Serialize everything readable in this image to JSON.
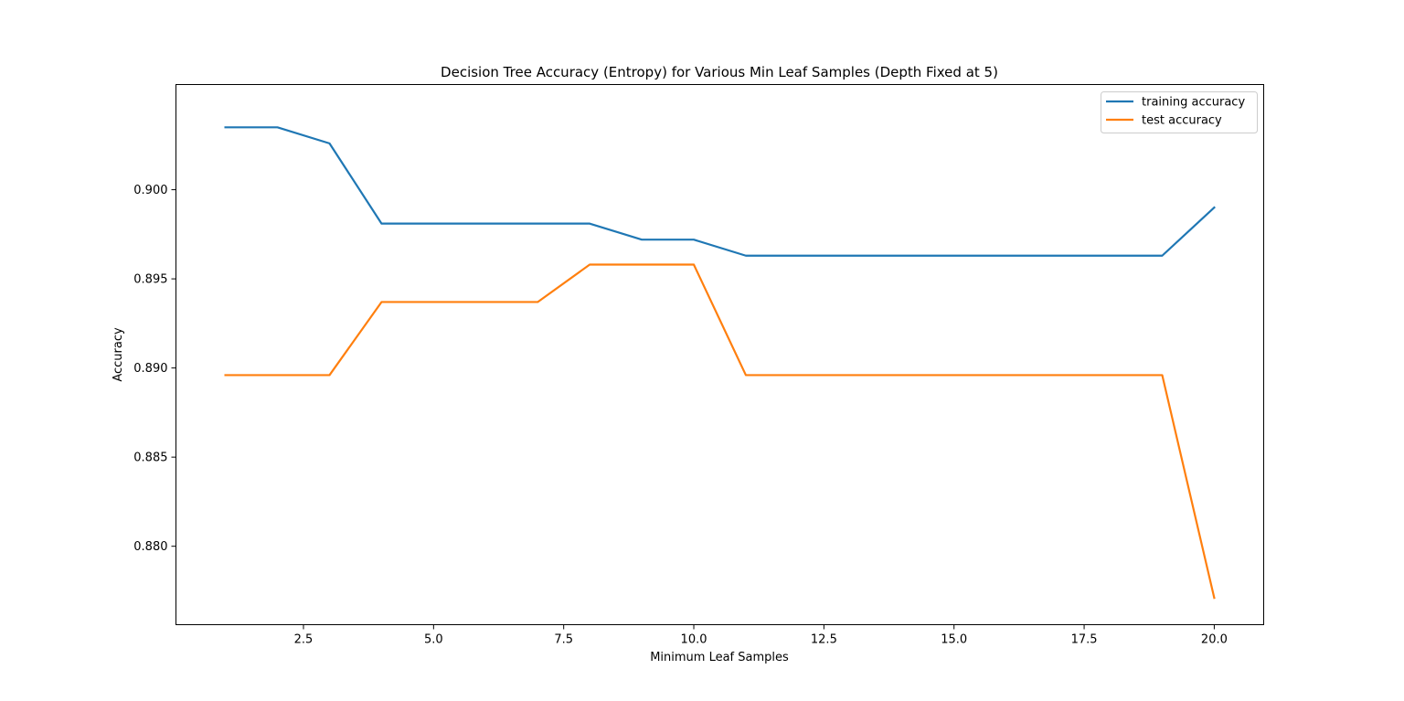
{
  "chart_data": {
    "type": "line",
    "title": "Decision Tree Accuracy (Entropy) for Various Min Leaf Samples (Depth Fixed at 5)",
    "xlabel": "Minimum Leaf Samples",
    "ylabel": "Accuracy",
    "xlim": [
      0.05,
      20.95
    ],
    "ylim": [
      0.8756,
      0.9059
    ],
    "xticks": [
      2.5,
      5.0,
      7.5,
      10.0,
      12.5,
      15.0,
      17.5,
      20.0
    ],
    "xtick_labels": [
      "2.5",
      "5.0",
      "7.5",
      "10.0",
      "12.5",
      "15.0",
      "17.5",
      "20.0"
    ],
    "yticks": [
      0.88,
      0.885,
      0.89,
      0.895,
      0.9
    ],
    "ytick_labels": [
      "0.880",
      "0.885",
      "0.890",
      "0.895",
      "0.900"
    ],
    "grid": false,
    "legend_position": "top-right",
    "x": [
      1,
      2,
      3,
      4,
      5,
      6,
      7,
      8,
      9,
      10,
      11,
      12,
      13,
      14,
      15,
      16,
      17,
      18,
      19,
      20
    ],
    "series": [
      {
        "name": "training accuracy",
        "color": "#1f77b4",
        "values": [
          0.9035,
          0.9035,
          0.9026,
          0.8981,
          0.8981,
          0.8981,
          0.8981,
          0.8981,
          0.8972,
          0.8972,
          0.8963,
          0.8963,
          0.8963,
          0.8963,
          0.8963,
          0.8963,
          0.8963,
          0.8963,
          0.8963,
          0.899
        ]
      },
      {
        "name": "test accuracy",
        "color": "#ff7f0e",
        "values": [
          0.8896,
          0.8896,
          0.8896,
          0.8937,
          0.8937,
          0.8937,
          0.8937,
          0.8958,
          0.8958,
          0.8958,
          0.8896,
          0.8896,
          0.8896,
          0.8896,
          0.8896,
          0.8896,
          0.8896,
          0.8896,
          0.8896,
          0.8771
        ]
      }
    ]
  }
}
